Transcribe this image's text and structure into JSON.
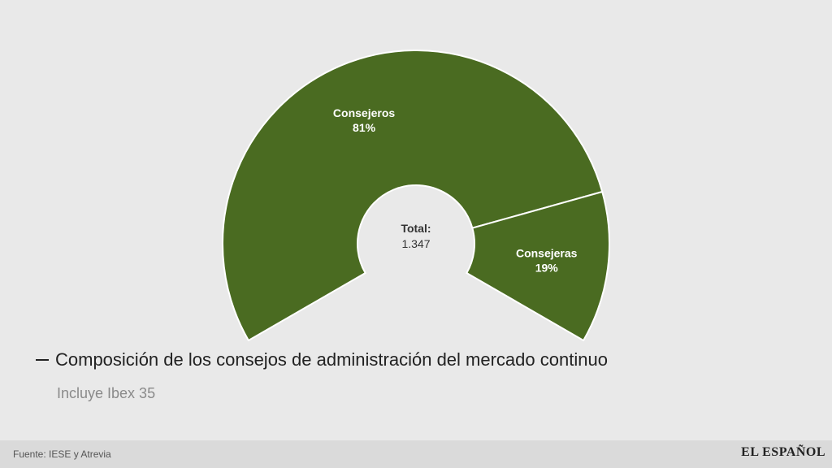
{
  "colors": {
    "slice": "#4a6b21",
    "separator": "#ffffff",
    "background": "#e9e9e9",
    "center": "#e9e9e9"
  },
  "chart_data": {
    "type": "pie",
    "style": "semi-donut",
    "slices": [
      {
        "label": "Consejeros",
        "value": 81,
        "value_label": "81%"
      },
      {
        "label": "Consejeras",
        "value": 19,
        "value_label": "19%"
      }
    ],
    "center_label": "Total:",
    "center_value": "1.347",
    "title": "Composición de los consejos de administración del mercado continuo",
    "subtitle": "Incluye Ibex 35"
  },
  "footer": {
    "source": "Fuente: IESE y Atrevia",
    "brand": "EL ESPAÑOL"
  }
}
